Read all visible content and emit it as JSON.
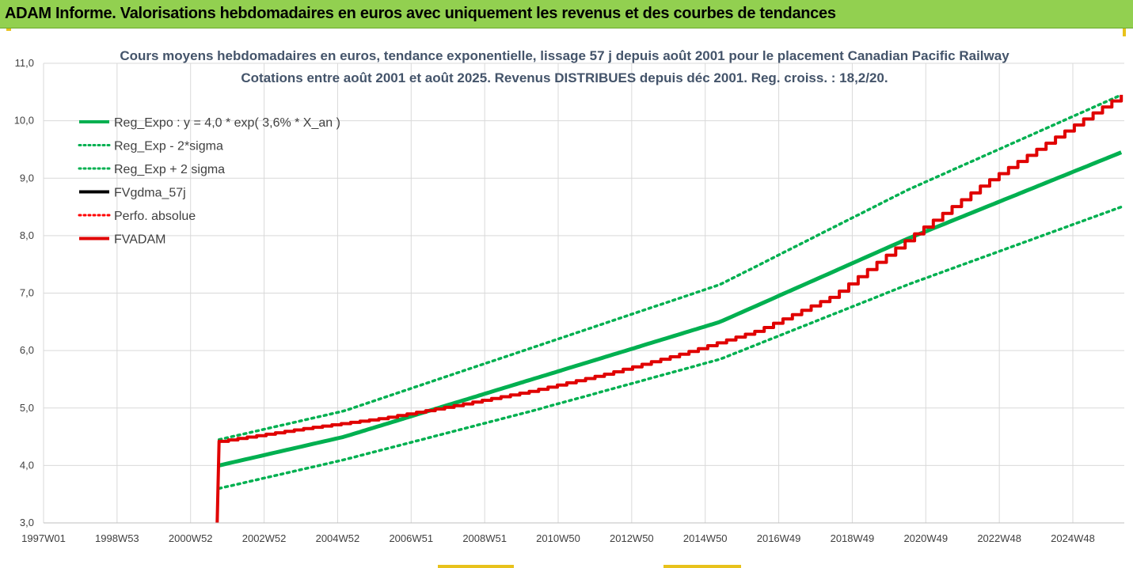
{
  "banner": {
    "title": "ADAM Informe. Valorisations hebdomadaires en euros avec uniquement les revenus et des courbes de tendances"
  },
  "colors": {
    "banner_bg": "#92d050",
    "reg_green": "#00b050",
    "fvadam_red": "#e00000",
    "perfo_red": "#ff0000",
    "fvgdma_black": "#000000",
    "title_text": "#44546a",
    "grid": "#d9d9d9"
  },
  "chart_data": {
    "type": "line",
    "title_lines": [
      "Cours moyens hebdomadaires en euros, tendance exponentielle, lissage 57 j depuis août 2001 pour le placement Canadian Pacific Railway",
      "Cotations entre août 2001 et août 2025. Revenus DISTRIBUES depuis déc 2001. Reg. croiss. : 18,2/20."
    ],
    "x_tick_labels": [
      "1997W01",
      "1998W53",
      "2000W52",
      "2002W52",
      "2004W52",
      "2006W51",
      "2008W51",
      "2010W50",
      "2012W50",
      "2014W50",
      "2016W49",
      "2018W49",
      "2020W49",
      "2022W48",
      "2024W48"
    ],
    "x_range_years": [
      1997.0,
      2025.75
    ],
    "y_tick_labels": [
      "3,0",
      "4,0",
      "5,0",
      "6,0",
      "7,0",
      "8,0",
      "9,0",
      "10,0",
      "11,0"
    ],
    "ylim": [
      3,
      11
    ],
    "grid": true,
    "legend_position": "top-left",
    "legend": [
      {
        "label": "Reg_Expo : y = 4,0 * exp( 3,6% *  X_an )",
        "color": "#00b050",
        "style": "solid"
      },
      {
        "label": "Reg_Exp - 2*sigma",
        "color": "#00b050",
        "style": "dotted"
      },
      {
        "label": "Reg_Exp + 2 sigma",
        "color": "#00b050",
        "style": "dotted"
      },
      {
        "label": "FVgdma_57j",
        "color": "#000000",
        "style": "solid"
      },
      {
        "label": "Perfo. absolue",
        "color": "#ff0000",
        "style": "dotted"
      },
      {
        "label": "FVADAM",
        "color": "#e00000",
        "style": "solid"
      }
    ],
    "series": [
      {
        "name": "Reg_Expo : y = 4,0 * exp( 3,6% *  X_an )",
        "x": [
          2001.67,
          2005,
          2010,
          2015,
          2020,
          2025.67
        ],
        "y": [
          4.0,
          4.5,
          5.5,
          6.5,
          7.95,
          9.45
        ]
      },
      {
        "name": "Reg_Exp - 2*sigma",
        "x": [
          2001.67,
          2005,
          2010,
          2015,
          2020,
          2025.67
        ],
        "y": [
          3.6,
          4.1,
          4.95,
          5.85,
          7.15,
          8.5
        ]
      },
      {
        "name": "Reg_Exp + 2 sigma",
        "x": [
          2001.67,
          2005,
          2010,
          2015,
          2020,
          2025.67
        ],
        "y": [
          4.45,
          4.95,
          6.05,
          7.15,
          8.8,
          10.45
        ]
      },
      {
        "name": "FVADAM",
        "x": [
          2001.62,
          2001.67,
          2004,
          2006,
          2008,
          2010,
          2012,
          2014,
          2016,
          2018,
          2020,
          2022,
          2024,
          2025.67
        ],
        "y": [
          3.0,
          4.42,
          4.65,
          4.82,
          5.05,
          5.3,
          5.6,
          5.95,
          6.35,
          6.95,
          7.95,
          8.9,
          9.75,
          10.45
        ]
      }
    ]
  }
}
